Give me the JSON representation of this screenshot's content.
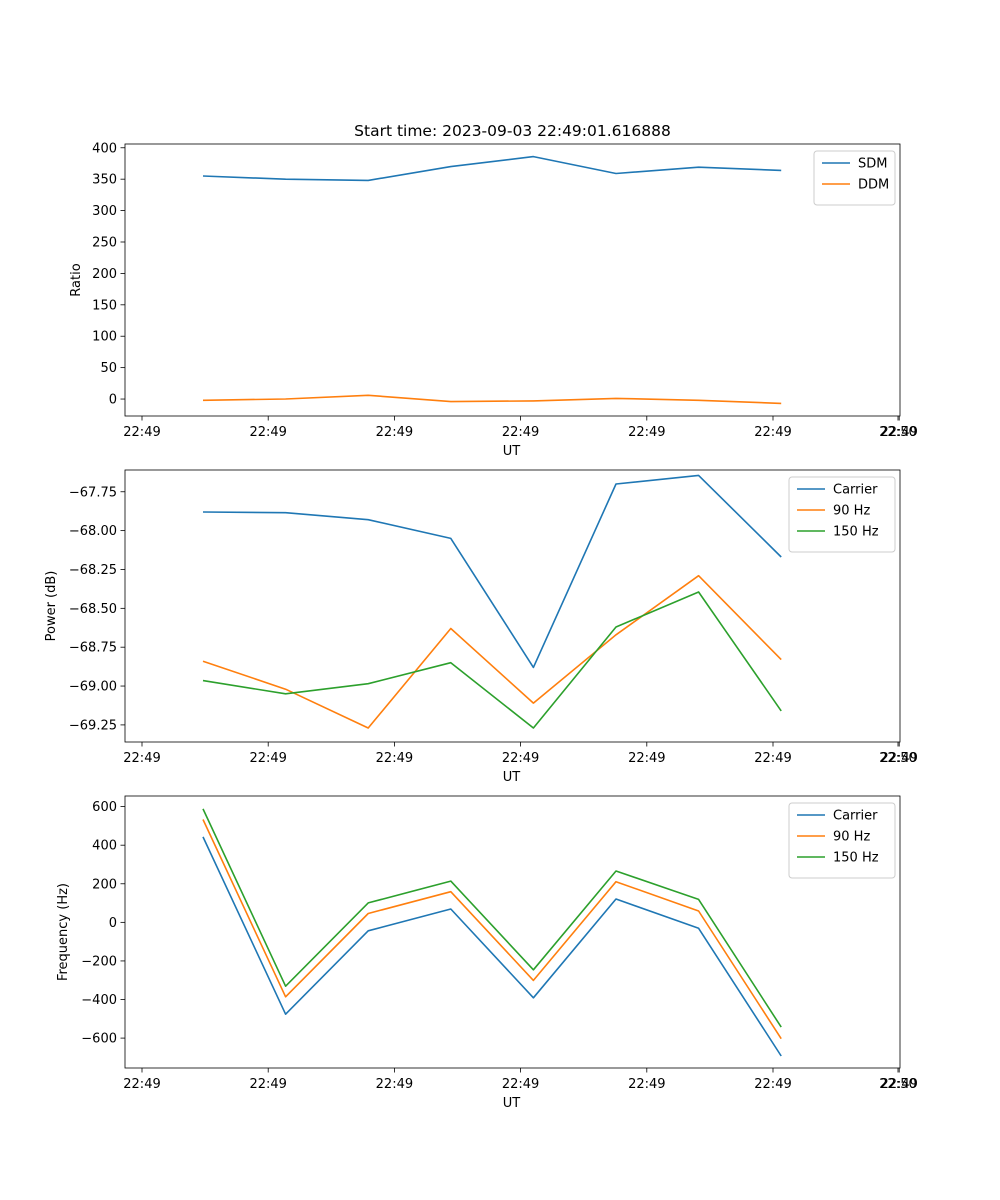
{
  "figure": {
    "title": "Start time: 2023-09-03 22:49:01.616888"
  },
  "colors": {
    "c0": "#1f77b4",
    "c1": "#ff7f0e",
    "c2": "#2ca02c"
  },
  "chart_data": [
    {
      "type": "line",
      "title": "Start time: 2023-09-03 22:49:01.616888",
      "xlabel": "UT",
      "ylabel": "Ratio",
      "x_tick_labels": [
        "22:49",
        "22:49",
        "22:49",
        "22:49",
        "22:49",
        "22:49",
        "22:49"
      ],
      "x_end_label": "22:50",
      "x": [
        1,
        2,
        3,
        4,
        5,
        6,
        7,
        8
      ],
      "xlim": [
        0.8,
        10.2
      ],
      "ylim": [
        -27,
        406
      ],
      "yticks": [
        0,
        50,
        100,
        150,
        200,
        250,
        300,
        350,
        400
      ],
      "legend": "top-right",
      "series": [
        {
          "name": "SDM",
          "color": "#1f77b4",
          "values": [
            355,
            350,
            348,
            370,
            386,
            359,
            369,
            364
          ]
        },
        {
          "name": "DDM",
          "color": "#ff7f0e",
          "values": [
            -2,
            0,
            6,
            -4,
            -3,
            1,
            -2,
            -7
          ]
        }
      ]
    },
    {
      "type": "line",
      "title": "",
      "xlabel": "UT",
      "ylabel": "Power (dB)",
      "x_tick_labels": [
        "22:49",
        "22:49",
        "22:49",
        "22:49",
        "22:49",
        "22:49",
        "22:49"
      ],
      "x_end_label": "22:50",
      "x": [
        1,
        2,
        3,
        4,
        5,
        6,
        7,
        8
      ],
      "xlim": [
        0.8,
        10.2
      ],
      "ylim": [
        -69.36,
        -67.61
      ],
      "yticks": [
        -69.25,
        -69.0,
        -68.75,
        -68.5,
        -68.25,
        -68.0,
        -67.75
      ],
      "ytick_labels": [
        "−69.25",
        "−69.00",
        "−68.75",
        "−68.50",
        "−68.25",
        "−68.00",
        "−67.75"
      ],
      "legend": "top-right",
      "series": [
        {
          "name": "Carrier",
          "color": "#1f77b4",
          "values": [
            -67.88,
            -67.885,
            -67.93,
            -68.05,
            -68.88,
            -67.7,
            -67.645,
            -68.17
          ]
        },
        {
          "name": "90 Hz",
          "color": "#ff7f0e",
          "values": [
            -68.84,
            -69.02,
            -69.27,
            -68.63,
            -69.11,
            -68.67,
            -68.29,
            -68.83
          ]
        },
        {
          "name": "150 Hz",
          "color": "#2ca02c",
          "values": [
            -68.965,
            -69.05,
            -68.985,
            -68.85,
            -69.27,
            -68.62,
            -68.395,
            -69.16
          ]
        }
      ]
    },
    {
      "type": "line",
      "title": "",
      "xlabel": "UT",
      "ylabel": "Frequency (Hz)",
      "x_tick_labels": [
        "22:49",
        "22:49",
        "22:49",
        "22:49",
        "22:49",
        "22:49",
        "22:49"
      ],
      "x_end_label": "22:50",
      "x": [
        1,
        2,
        3,
        4,
        5,
        6,
        7,
        8
      ],
      "xlim": [
        0.8,
        10.2
      ],
      "ylim": [
        -755,
        655
      ],
      "yticks": [
        -600,
        -400,
        -200,
        0,
        200,
        400,
        600
      ],
      "ytick_labels": [
        "−600",
        "−400",
        "−200",
        "0",
        "200",
        "400",
        "600"
      ],
      "legend": "top-right",
      "series": [
        {
          "name": "Carrier",
          "color": "#1f77b4",
          "values": [
            443,
            -476,
            -44,
            69,
            -391,
            121,
            -31,
            -693
          ]
        },
        {
          "name": "90 Hz",
          "color": "#ff7f0e",
          "values": [
            533,
            -386,
            46,
            159,
            -301,
            211,
            59,
            -603
          ]
        },
        {
          "name": "150 Hz",
          "color": "#2ca02c",
          "values": [
            588,
            -331,
            101,
            214,
            -246,
            266,
            119,
            -543
          ]
        }
      ]
    }
  ]
}
